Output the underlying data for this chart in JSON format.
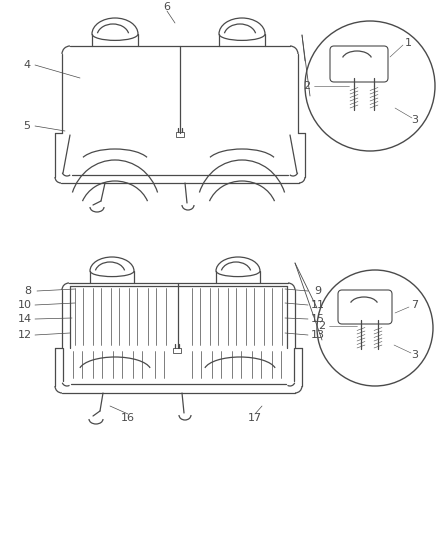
{
  "bg_color": "#ffffff",
  "line_color": "#4a4a4a",
  "lw": 0.9
}
